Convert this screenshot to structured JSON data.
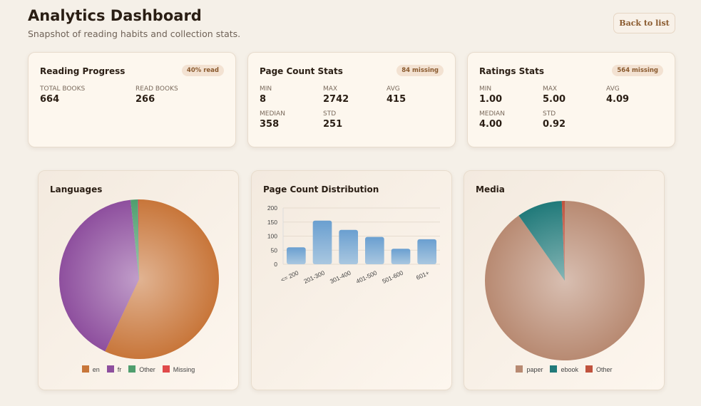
{
  "header": {
    "title": "Analytics Dashboard",
    "subtitle": "Snapshot of reading habits and collection stats.",
    "back_label": "Back to list"
  },
  "reading": {
    "title": "Reading Progress",
    "badge": "40% read",
    "stats": [
      {
        "label": "Total Books",
        "value": "664"
      },
      {
        "label": "Read Books",
        "value": "266"
      }
    ]
  },
  "pages": {
    "title": "Page Count Stats",
    "badge": "84 missing",
    "stats": [
      {
        "label": "Min",
        "value": "8"
      },
      {
        "label": "Max",
        "value": "2742"
      },
      {
        "label": "Avg",
        "value": "415"
      },
      {
        "label": "Median",
        "value": "358"
      },
      {
        "label": "Std",
        "value": "251"
      }
    ]
  },
  "ratings": {
    "title": "Ratings Stats",
    "badge": "564 missing",
    "stats": [
      {
        "label": "Min",
        "value": "1.00"
      },
      {
        "label": "Max",
        "value": "5.00"
      },
      {
        "label": "Avg",
        "value": "4.09"
      },
      {
        "label": "Median",
        "value": "4.00"
      },
      {
        "label": "Std",
        "value": "0.92"
      }
    ]
  },
  "chart_data": [
    {
      "type": "pie",
      "title": "Languages",
      "labels": [
        "en",
        "fr",
        "Other",
        "Missing"
      ],
      "values": [
        57,
        41.3,
        1.5,
        0.2
      ],
      "colors": [
        "#c8763a",
        "#8e4f9e",
        "#4f9e6e",
        "#e04a4a"
      ],
      "legend": "bottom"
    },
    {
      "type": "bar",
      "title": "Page Count Distribution",
      "categories": [
        "<= 200",
        "201-300",
        "301-400",
        "401-500",
        "501-600",
        "601+"
      ],
      "values": [
        60,
        155,
        122,
        97,
        55,
        89
      ],
      "ylim": [
        0,
        200
      ],
      "yticks": [
        0,
        50,
        100,
        150,
        200
      ],
      "grid": true,
      "color": "#6a9fd0"
    },
    {
      "type": "pie",
      "title": "Media",
      "labels": [
        "paper",
        "ebook",
        "Other"
      ],
      "values": [
        90.2,
        9.2,
        0.6
      ],
      "colors": [
        "#b88a72",
        "#217a7a",
        "#c0533e"
      ],
      "legend": "bottom"
    }
  ]
}
